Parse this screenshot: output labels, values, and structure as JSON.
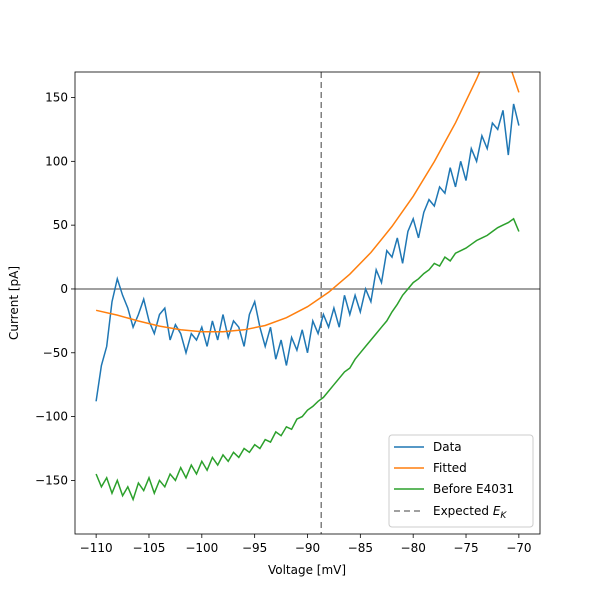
{
  "chart_data": {
    "type": "line",
    "xlabel": "Voltage [mV]",
    "ylabel": "Current [pA]",
    "xlim": [
      -112,
      -68
    ],
    "ylim": [
      -192,
      170
    ],
    "x_ticks": [
      -110,
      -105,
      -100,
      -95,
      -90,
      -85,
      -80,
      -75,
      -70
    ],
    "x_tick_labels": [
      "−110",
      "−105",
      "−100",
      "−95",
      "−90",
      "−85",
      "−80",
      "−75",
      "−70"
    ],
    "y_ticks": [
      -150,
      -100,
      -50,
      0,
      50,
      100,
      150
    ],
    "y_tick_labels": [
      "−150",
      "−100",
      "−50",
      "0",
      "50",
      "100",
      "150"
    ],
    "grid": false,
    "legend_position": "lower-right",
    "zero_line": {
      "y": 0,
      "color": "#808080"
    },
    "vline": {
      "name": "Expected E_K",
      "x": -88.7,
      "color": "#808080",
      "style": "dashed"
    },
    "series": [
      {
        "name": "Data",
        "color": "#1f77b4",
        "x": [
          -110,
          -109.5,
          -109,
          -108.5,
          -108,
          -107.5,
          -107,
          -106.5,
          -106,
          -105.5,
          -105,
          -104.5,
          -104,
          -103.5,
          -103,
          -102.5,
          -102,
          -101.5,
          -101,
          -100.5,
          -100,
          -99.5,
          -99,
          -98.5,
          -98,
          -97.5,
          -97,
          -96.5,
          -96,
          -95.5,
          -95,
          -94.5,
          -94,
          -93.5,
          -93,
          -92.5,
          -92,
          -91.5,
          -91,
          -90.5,
          -90,
          -89.5,
          -89,
          -88.5,
          -88,
          -87.5,
          -87,
          -86.5,
          -86,
          -85.5,
          -85,
          -84.5,
          -84,
          -83.5,
          -83,
          -82.5,
          -82,
          -81.5,
          -81,
          -80.5,
          -80,
          -79.5,
          -79,
          -78.5,
          -78,
          -77.5,
          -77,
          -76.5,
          -76,
          -75.5,
          -75,
          -74.5,
          -74,
          -73.5,
          -73,
          -72.5,
          -72,
          -71.5,
          -71,
          -70.5,
          -70
        ],
        "y": [
          -88,
          -60,
          -45,
          -10,
          8,
          -5,
          -15,
          -30,
          -20,
          -8,
          -25,
          -35,
          -20,
          -15,
          -40,
          -28,
          -35,
          -50,
          -35,
          -40,
          -30,
          -45,
          -25,
          -40,
          -20,
          -38,
          -25,
          -30,
          -45,
          -20,
          -10,
          -30,
          -45,
          -30,
          -55,
          -40,
          -60,
          -38,
          -48,
          -32,
          -50,
          -25,
          -35,
          -20,
          -30,
          -15,
          -30,
          -5,
          -20,
          -5,
          -18,
          0,
          -10,
          15,
          5,
          30,
          25,
          40,
          20,
          45,
          55,
          40,
          60,
          70,
          65,
          80,
          75,
          95,
          80,
          100,
          85,
          110,
          100,
          120,
          110,
          130,
          125,
          140,
          105,
          145,
          128
        ]
      },
      {
        "name": "Fitted",
        "color": "#ff7f0e",
        "x": [
          -110,
          -108,
          -106,
          -104,
          -102,
          -100,
          -98,
          -96,
          -94,
          -92,
          -90,
          -88,
          -86,
          -84,
          -82,
          -80,
          -78,
          -76,
          -74,
          -72,
          -70
        ],
        "y": [
          -16.7,
          -20.5,
          -25.1,
          -29.1,
          -32.0,
          -33.5,
          -33.5,
          -32.0,
          -28.6,
          -22.5,
          -13.9,
          -2.6,
          11.6,
          28.6,
          49.0,
          72.6,
          99.8,
          130.2,
          164.5,
          203.0,
          154.0
        ]
      },
      {
        "name": "Before E4031",
        "color": "#2ca02c",
        "x": [
          -110,
          -109.5,
          -109,
          -108.5,
          -108,
          -107.5,
          -107,
          -106.5,
          -106,
          -105.5,
          -105,
          -104.5,
          -104,
          -103.5,
          -103,
          -102.5,
          -102,
          -101.5,
          -101,
          -100.5,
          -100,
          -99.5,
          -99,
          -98.5,
          -98,
          -97.5,
          -97,
          -96.5,
          -96,
          -95.5,
          -95,
          -94.5,
          -94,
          -93.5,
          -93,
          -92.5,
          -92,
          -91.5,
          -91,
          -90.5,
          -90,
          -89.5,
          -89,
          -88.5,
          -88,
          -87.5,
          -87,
          -86.5,
          -86,
          -85.5,
          -85,
          -84.5,
          -84,
          -83.5,
          -83,
          -82.5,
          -82,
          -81.5,
          -81,
          -80.5,
          -80,
          -79.5,
          -79,
          -78.5,
          -78,
          -77.5,
          -77,
          -76.5,
          -76,
          -75.5,
          -75,
          -74.5,
          -74,
          -73.5,
          -73,
          -72.5,
          -72,
          -71.5,
          -71,
          -70.5,
          -70
        ],
        "y": [
          -145,
          -155,
          -148,
          -160,
          -150,
          -162,
          -155,
          -165,
          -152,
          -158,
          -148,
          -160,
          -150,
          -155,
          -145,
          -150,
          -140,
          -148,
          -138,
          -145,
          -135,
          -142,
          -132,
          -138,
          -130,
          -135,
          -128,
          -132,
          -125,
          -128,
          -122,
          -125,
          -118,
          -120,
          -112,
          -115,
          -108,
          -110,
          -102,
          -100,
          -95,
          -92,
          -88,
          -85,
          -80,
          -75,
          -70,
          -65,
          -62,
          -55,
          -50,
          -45,
          -40,
          -35,
          -30,
          -25,
          -18,
          -12,
          -5,
          0,
          5,
          8,
          12,
          15,
          20,
          18,
          25,
          22,
          28,
          30,
          32,
          35,
          38,
          40,
          42,
          45,
          48,
          50,
          52,
          55,
          45
        ]
      }
    ],
    "legend": [
      {
        "label": "Data",
        "color": "#1f77b4",
        "style": "solid"
      },
      {
        "label": "Fitted",
        "color": "#ff7f0e",
        "style": "solid"
      },
      {
        "label": "Before E4031",
        "color": "#2ca02c",
        "style": "solid"
      },
      {
        "label": "Expected ",
        "sub": "K",
        "color": "#808080",
        "style": "dashed"
      }
    ]
  }
}
